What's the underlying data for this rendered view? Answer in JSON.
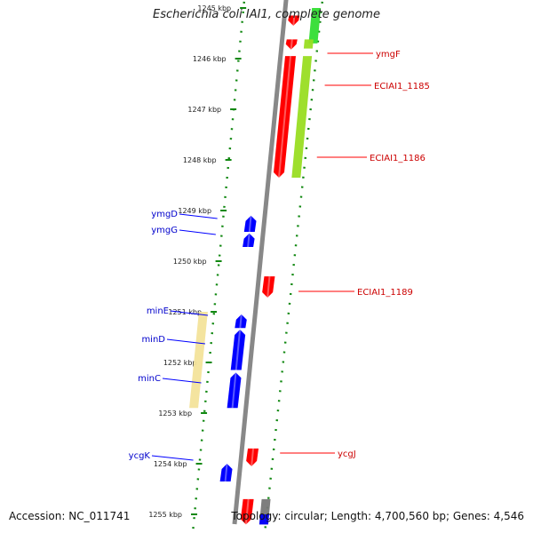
{
  "title": "Escherichia coli IAI1, complete genome",
  "footer": {
    "accession": "Accession: NC_011741",
    "summary": "Topology: circular; Length: 4,700,560 bp; Genes: 4,546"
  },
  "colors": {
    "forward": "#ff0000",
    "reverse": "#0000ff",
    "forward_label": "#cc0000",
    "reverse_label": "#0000cc",
    "rna": "#33dd33",
    "pseudo": "#99dd22",
    "intergenic": "#f3e39a",
    "hypothetical": "#777777",
    "tick": "#118811",
    "backbone": "#888888"
  },
  "ticks": [
    {
      "kbp": 1245,
      "label": "1245 kbp"
    },
    {
      "kbp": 1246,
      "label": "1246 kbp"
    },
    {
      "kbp": 1247,
      "label": "1247 kbp"
    },
    {
      "kbp": 1248,
      "label": "1248 kbp"
    },
    {
      "kbp": 1249,
      "label": "1249 kbp"
    },
    {
      "kbp": 1250,
      "label": "1250 kbp"
    },
    {
      "kbp": 1251,
      "label": "1251 kbp"
    },
    {
      "kbp": 1252,
      "label": "1252 kbp"
    },
    {
      "kbp": 1253,
      "label": "1253 kbp"
    },
    {
      "kbp": 1254,
      "label": "1254 kbp"
    },
    {
      "kbp": 1255,
      "label": "1255 kbp"
    }
  ],
  "genes_forward": [
    {
      "name": "ymgF",
      "start": 1245.15,
      "end": 1245.35,
      "type": "forward",
      "label": true
    },
    {
      "name": "ECIAI1_1185",
      "start": 1245.62,
      "end": 1245.82,
      "type": "forward",
      "label": true
    },
    {
      "name": "ECIAI1_1186",
      "start": 1245.95,
      "end": 1248.35,
      "type": "forward",
      "label": true
    },
    {
      "name": "ECIAI1_1189",
      "start": 1250.3,
      "end": 1250.72,
      "type": "forward",
      "label": true
    },
    {
      "name": "ycgJ",
      "start": 1253.7,
      "end": 1254.05,
      "type": "forward",
      "label": true
    },
    {
      "name": "",
      "start": 1254.7,
      "end": 1255.2,
      "type": "forward",
      "label": false
    }
  ],
  "genes_reverse": [
    {
      "name": "ymgD",
      "start": 1249.1,
      "end": 1249.42,
      "type": "reverse",
      "label": true
    },
    {
      "name": "ymgG",
      "start": 1249.45,
      "end": 1249.72,
      "type": "reverse",
      "label": true
    },
    {
      "name": "minE",
      "start": 1251.05,
      "end": 1251.32,
      "type": "reverse",
      "label": true
    },
    {
      "name": "minD",
      "start": 1251.35,
      "end": 1252.15,
      "type": "reverse",
      "label": true
    },
    {
      "name": "minC",
      "start": 1252.2,
      "end": 1252.9,
      "type": "reverse",
      "label": true
    },
    {
      "name": "ycgK",
      "start": 1254.0,
      "end": 1254.35,
      "type": "reverse",
      "label": true
    }
  ],
  "features_outer": [
    {
      "start": 1245.0,
      "end": 1245.7,
      "type": "rna"
    },
    {
      "start": 1245.62,
      "end": 1245.8,
      "type": "pseudo"
    },
    {
      "start": 1245.95,
      "end": 1248.35,
      "type": "pseudo"
    },
    {
      "start": 1254.7,
      "end": 1255.2,
      "type": "hypothetical"
    },
    {
      "start": 1255.0,
      "end": 1255.2,
      "type": "reverse"
    }
  ],
  "features_inner": [
    {
      "start": 1251.0,
      "end": 1252.9,
      "type": "intergenic"
    }
  ]
}
